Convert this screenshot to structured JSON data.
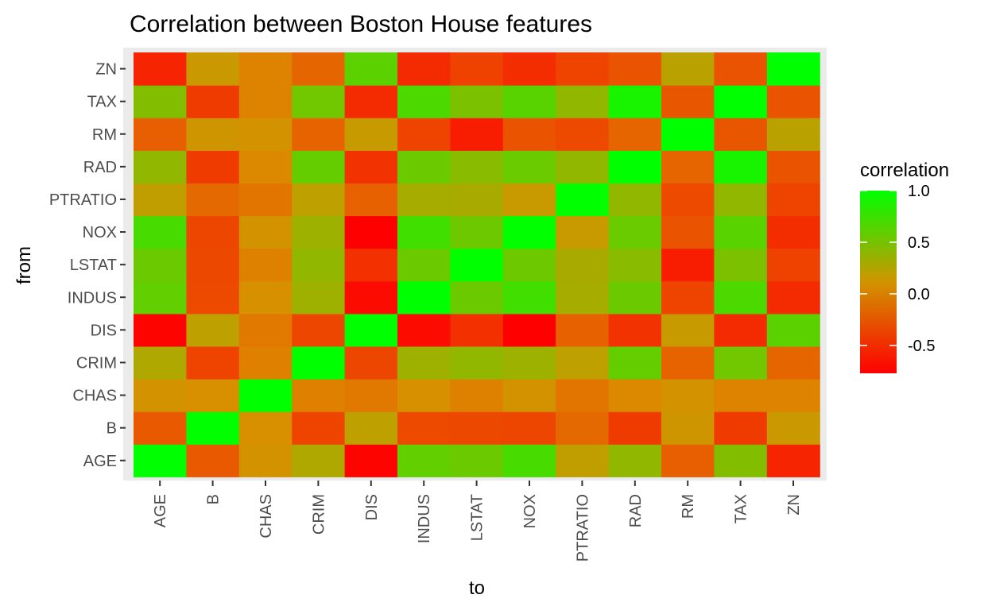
{
  "chart_data": {
    "type": "heatmap",
    "title": "Correlation between Boston House features",
    "xlabel": "to",
    "ylabel": "from",
    "x_categories": [
      "AGE",
      "B",
      "CHAS",
      "CRIM",
      "DIS",
      "INDUS",
      "LSTAT",
      "NOX",
      "PTRATIO",
      "RAD",
      "RM",
      "TAX",
      "ZN"
    ],
    "y_categories": [
      "AGE",
      "B",
      "CHAS",
      "CRIM",
      "DIS",
      "INDUS",
      "LSTAT",
      "NOX",
      "PTRATIO",
      "RAD",
      "RM",
      "TAX",
      "ZN"
    ],
    "values": [
      [
        1.0,
        -0.27,
        0.09,
        0.35,
        -0.75,
        0.64,
        0.6,
        0.73,
        0.26,
        0.46,
        -0.24,
        0.51,
        -0.57
      ],
      [
        -0.27,
        1.0,
        0.05,
        -0.39,
        0.29,
        -0.36,
        -0.37,
        -0.38,
        -0.18,
        -0.44,
        0.13,
        -0.44,
        0.18
      ],
      [
        0.09,
        0.05,
        1.0,
        -0.06,
        -0.1,
        0.06,
        -0.05,
        0.09,
        -0.12,
        -0.01,
        0.09,
        -0.04,
        -0.04
      ],
      [
        0.35,
        -0.39,
        -0.06,
        1.0,
        -0.38,
        0.41,
        0.46,
        0.42,
        0.29,
        0.63,
        -0.22,
        0.58,
        -0.2
      ],
      [
        -0.75,
        0.29,
        -0.1,
        -0.38,
        1.0,
        -0.71,
        -0.5,
        -0.77,
        -0.23,
        -0.49,
        0.21,
        -0.53,
        0.66
      ],
      [
        0.64,
        -0.36,
        0.06,
        0.41,
        -0.71,
        1.0,
        0.6,
        0.76,
        0.38,
        0.6,
        -0.39,
        0.72,
        -0.53
      ],
      [
        0.6,
        -0.37,
        -0.05,
        0.46,
        -0.5,
        0.6,
        1.0,
        0.59,
        0.37,
        0.49,
        -0.61,
        0.54,
        -0.41
      ],
      [
        0.73,
        -0.38,
        0.09,
        0.42,
        -0.77,
        0.76,
        0.59,
        1.0,
        0.19,
        0.61,
        -0.3,
        0.67,
        -0.52
      ],
      [
        0.26,
        -0.18,
        -0.12,
        0.29,
        -0.23,
        0.38,
        0.37,
        0.19,
        1.0,
        0.46,
        -0.36,
        0.46,
        -0.39
      ],
      [
        0.46,
        -0.44,
        -0.01,
        0.63,
        -0.49,
        0.6,
        0.49,
        0.61,
        0.46,
        1.0,
        -0.21,
        0.91,
        -0.31
      ],
      [
        -0.24,
        0.13,
        0.09,
        -0.22,
        0.21,
        -0.39,
        -0.61,
        -0.3,
        -0.36,
        -0.21,
        1.0,
        -0.29,
        0.31
      ],
      [
        0.51,
        -0.44,
        -0.04,
        0.58,
        -0.53,
        0.72,
        0.54,
        0.67,
        0.46,
        0.91,
        -0.29,
        1.0,
        -0.31
      ],
      [
        -0.57,
        0.18,
        -0.04,
        -0.2,
        0.66,
        -0.53,
        -0.41,
        -0.52,
        -0.39,
        -0.31,
        0.31,
        -0.31,
        1.0
      ]
    ],
    "color_scale": {
      "low": "#ff0000",
      "high": "#00ff00",
      "domain": [
        -0.77,
        1.0
      ]
    },
    "legend": {
      "title": "correlation",
      "position": "right",
      "tick_values": [
        1.0,
        0.5,
        0.0,
        -0.5
      ],
      "tick_labels": [
        "1.0",
        "0.5",
        "0.0",
        "-0.5"
      ]
    },
    "grid": true
  }
}
